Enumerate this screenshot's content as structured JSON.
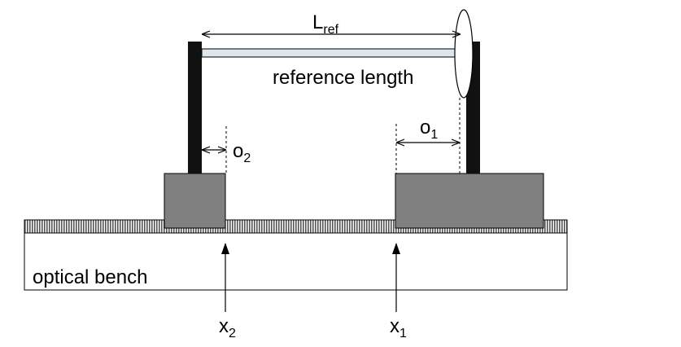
{
  "labels": {
    "l_ref_main": "L",
    "l_ref_sub": "ref",
    "reference_length": "reference length",
    "o1_main": "o",
    "o1_sub": "1",
    "o2_main": "o",
    "o2_sub": "2",
    "optical_bench": "optical bench",
    "x1_main": "x",
    "x1_sub": "1",
    "x2_main": "x",
    "x2_sub": "2"
  },
  "colors": {
    "post": "#111111",
    "carriage": "#808080",
    "rail": "#888888",
    "rod": "#dde6ec",
    "line": "#000000"
  }
}
